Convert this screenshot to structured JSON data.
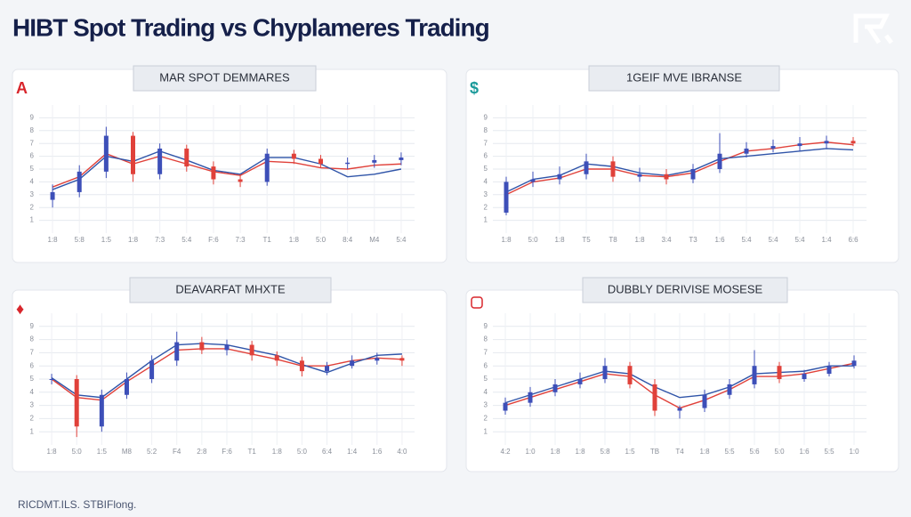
{
  "title": "HIBT Spot Trading vs Chyplameres Trading",
  "footer": "RICDMT.ILS. STBIFlong.",
  "chart_data": [
    {
      "type": "candlestick",
      "title": "MAR SPOT DEMMARES",
      "badge": "A",
      "categories": [
        "1:8",
        "5:8",
        "1:5",
        "1:8",
        "7:3",
        "5:4",
        "F:6",
        "7:3",
        "T1",
        "1:8",
        "5:0",
        "8:4",
        "M4",
        "5:4"
      ],
      "open": [
        2.6,
        3.2,
        4.8,
        7.6,
        4.6,
        6.6,
        5.2,
        4.2,
        4.0,
        6.2,
        5.8,
        5.4,
        5.5,
        5.7
      ],
      "high": [
        3.8,
        5.3,
        8.3,
        7.9,
        7.0,
        6.9,
        5.6,
        4.6,
        6.6,
        6.5,
        6.1,
        5.9,
        6.1,
        6.3
      ],
      "low": [
        2.0,
        2.8,
        4.3,
        4.0,
        4.2,
        4.8,
        3.8,
        3.6,
        3.7,
        5.4,
        5.1,
        5.0,
        5.1,
        5.3
      ],
      "close": [
        3.2,
        4.8,
        7.6,
        4.6,
        6.6,
        5.2,
        4.2,
        4.0,
        6.2,
        5.8,
        5.4,
        5.5,
        5.7,
        5.9
      ],
      "series": [
        {
          "color": "#e0413a",
          "values": [
            3.6,
            4.4,
            6.2,
            5.4,
            6.0,
            5.4,
            4.8,
            4.5,
            5.6,
            5.5,
            5.1,
            5.0,
            5.3,
            5.4
          ]
        },
        {
          "color": "#2f54a8",
          "values": [
            3.4,
            4.2,
            6.0,
            5.6,
            6.4,
            5.7,
            4.9,
            4.6,
            5.9,
            5.9,
            5.4,
            4.4,
            4.6,
            5.0
          ]
        }
      ],
      "up_color": "#3d4fb8",
      "down_color": "#e0413a",
      "ylim": [
        0,
        10
      ],
      "yticks": [
        1,
        2,
        3,
        4,
        5,
        6,
        7,
        8,
        9
      ],
      "grid": true
    },
    {
      "type": "candlestick",
      "title": "1GEIF MVE IBRANSE",
      "badge": "$",
      "categories": [
        "1:8",
        "5:0",
        "1:8",
        "T5",
        "T8",
        "1:8",
        "3:4",
        "T3",
        "1:6",
        "5:4",
        "5:4",
        "5:4",
        "1:4",
        "6:6"
      ],
      "open": [
        1.6,
        4.0,
        4.2,
        4.6,
        5.6,
        4.4,
        4.6,
        4.2,
        5.0,
        6.2,
        6.6,
        6.8,
        7.0,
        7.2
      ],
      "high": [
        4.4,
        4.8,
        5.2,
        6.2,
        6.0,
        5.1,
        5.0,
        5.4,
        7.8,
        7.1,
        7.3,
        7.5,
        7.6,
        7.5
      ],
      "low": [
        1.4,
        3.6,
        3.8,
        4.2,
        4.0,
        4.0,
        3.8,
        3.9,
        4.7,
        5.9,
        6.3,
        6.4,
        6.6,
        6.8
      ],
      "close": [
        4.0,
        4.2,
        4.6,
        5.6,
        4.4,
        4.6,
        4.2,
        5.0,
        6.2,
        6.6,
        6.8,
        7.0,
        7.2,
        7.0
      ],
      "series": [
        {
          "color": "#e0413a",
          "values": [
            3.0,
            4.0,
            4.3,
            5.0,
            5.0,
            4.5,
            4.4,
            4.7,
            5.6,
            6.4,
            6.6,
            6.9,
            7.1,
            6.9
          ]
        },
        {
          "color": "#2f54a8",
          "values": [
            3.2,
            4.2,
            4.5,
            5.4,
            5.2,
            4.7,
            4.5,
            4.9,
            5.8,
            6.0,
            6.2,
            6.4,
            6.6,
            6.5
          ]
        }
      ],
      "up_color": "#3d4fb8",
      "down_color": "#e0413a",
      "ylim": [
        0,
        10
      ],
      "yticks": [
        1,
        2,
        3,
        4,
        5,
        6,
        7,
        8,
        9
      ],
      "grid": true
    },
    {
      "type": "candlestick",
      "title": "DEAVARFAT MHXTE",
      "badge": "♦",
      "categories": [
        "1:8",
        "5:0",
        "1:5",
        "M8",
        "5:2",
        "F4",
        "2:8",
        "F:6",
        "T1",
        "1:8",
        "5:0",
        "6:4",
        "1:4",
        "1:6",
        "4:0"
      ],
      "open": [
        5.0,
        5.0,
        1.4,
        3.8,
        5.0,
        6.4,
        7.8,
        7.2,
        7.6,
        6.8,
        6.4,
        5.6,
        6.0,
        6.4,
        6.6
      ],
      "high": [
        5.4,
        5.3,
        4.2,
        5.5,
        6.8,
        8.6,
        8.2,
        8.0,
        7.9,
        7.1,
        6.7,
        6.3,
        6.8,
        7.0,
        6.8
      ],
      "low": [
        4.6,
        0.6,
        1.0,
        3.5,
        4.7,
        6.0,
        6.9,
        6.8,
        6.4,
        6.0,
        5.2,
        5.3,
        5.8,
        6.1,
        6.0
      ],
      "close": [
        5.0,
        1.4,
        3.8,
        5.0,
        6.4,
        7.8,
        7.2,
        7.6,
        6.8,
        6.4,
        5.6,
        6.0,
        6.4,
        6.6,
        6.4
      ],
      "series": [
        {
          "color": "#e0413a",
          "values": [
            5.0,
            3.6,
            3.4,
            4.8,
            6.0,
            7.2,
            7.3,
            7.3,
            6.9,
            6.5,
            6.0,
            6.0,
            6.4,
            6.6,
            6.5
          ]
        },
        {
          "color": "#2f54a8",
          "values": [
            5.1,
            3.8,
            3.6,
            5.0,
            6.4,
            7.6,
            7.7,
            7.6,
            7.2,
            6.8,
            6.1,
            5.5,
            6.2,
            6.8,
            6.9
          ]
        }
      ],
      "up_color": "#3d4fb8",
      "down_color": "#e0413a",
      "ylim": [
        0,
        10
      ],
      "yticks": [
        1,
        2,
        3,
        4,
        5,
        6,
        7,
        8,
        9
      ],
      "grid": true
    },
    {
      "type": "candlestick",
      "title": "DUBBLY DERIVISE MOSESE",
      "categories": [
        "4:2",
        "1:0",
        "1:8",
        "1:8",
        "5:8",
        "1:5",
        "TB",
        "T4",
        "1:8",
        "5:5",
        "5:6",
        "5:0",
        "1:6",
        "5:5",
        "1:0"
      ],
      "open": [
        2.6,
        3.2,
        4.0,
        4.6,
        5.0,
        6.0,
        4.6,
        2.6,
        2.8,
        3.8,
        4.6,
        6.0,
        5.0,
        5.4,
        6.0
      ],
      "high": [
        3.6,
        4.4,
        5.0,
        5.5,
        6.6,
        6.3,
        5.0,
        3.0,
        4.2,
        5.0,
        7.2,
        6.3,
        5.7,
        6.3,
        6.8
      ],
      "low": [
        2.3,
        2.9,
        3.7,
        4.3,
        4.7,
        4.3,
        2.2,
        2.0,
        2.5,
        3.5,
        4.3,
        4.7,
        4.8,
        5.2,
        5.8
      ],
      "close": [
        3.2,
        4.0,
        4.6,
        5.0,
        6.0,
        4.6,
        2.6,
        2.8,
        3.8,
        4.6,
        6.0,
        5.0,
        5.4,
        6.0,
        6.4
      ],
      "series": [
        {
          "color": "#e0413a",
          "values": [
            3.0,
            3.6,
            4.2,
            4.8,
            5.4,
            5.2,
            3.8,
            2.8,
            3.4,
            4.2,
            5.2,
            5.2,
            5.4,
            5.8,
            6.2
          ]
        },
        {
          "color": "#2f54a8",
          "values": [
            3.2,
            3.8,
            4.4,
            5.0,
            5.6,
            5.4,
            4.4,
            3.6,
            3.8,
            4.4,
            5.4,
            5.5,
            5.6,
            6.0,
            6.0
          ]
        }
      ],
      "up_color": "#3d4fb8",
      "down_color": "#e0413a",
      "ylim": [
        0,
        10
      ],
      "yticks": [
        1,
        2,
        3,
        4,
        5,
        6,
        7,
        8,
        9
      ],
      "grid": true
    }
  ]
}
